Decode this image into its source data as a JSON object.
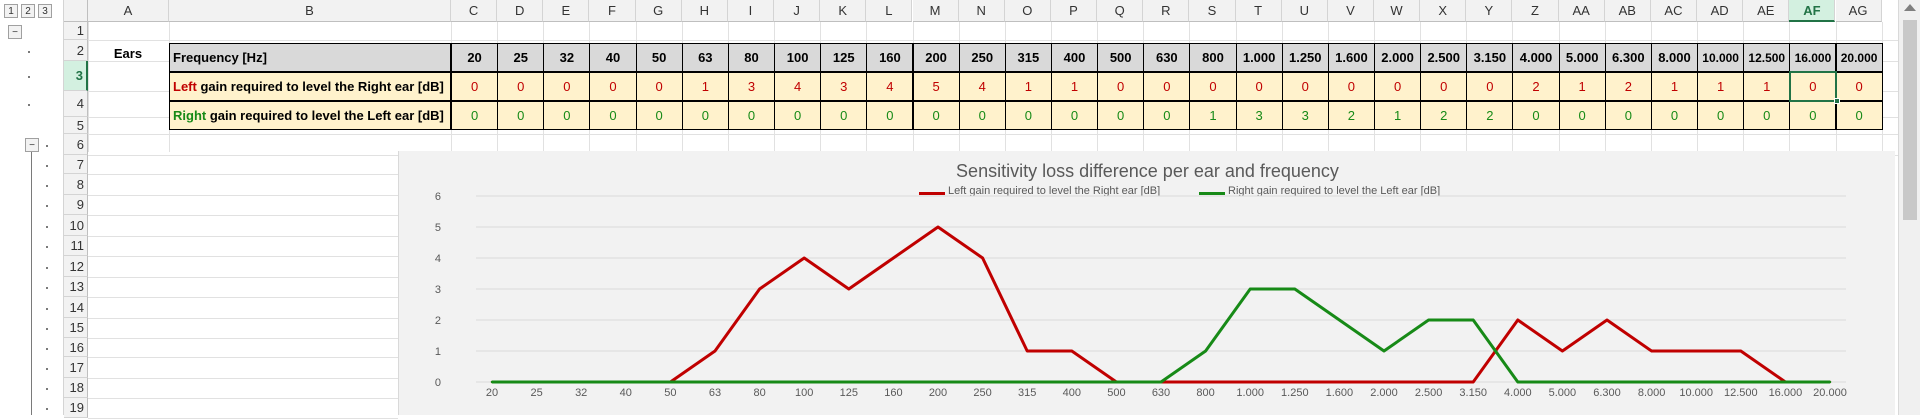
{
  "outline_levels": [
    "1",
    "2",
    "3"
  ],
  "outline_collapse_symbol": "−",
  "columns": [
    "A",
    "B",
    "C",
    "D",
    "E",
    "F",
    "G",
    "H",
    "I",
    "J",
    "K",
    "L",
    "M",
    "N",
    "O",
    "P",
    "Q",
    "R",
    "S",
    "T",
    "U",
    "V",
    "W",
    "X",
    "Y",
    "Z",
    "AA",
    "AB",
    "AC",
    "AD",
    "AE",
    "AF",
    "AG"
  ],
  "selected_column": "AF",
  "rows": [
    "1",
    "2",
    "3",
    "4",
    "5",
    "6",
    "7",
    "8",
    "9",
    "10",
    "11",
    "12",
    "13",
    "14",
    "15",
    "16",
    "17",
    "18",
    "19"
  ],
  "selected_row": "3",
  "ears_label": "Ears",
  "table": {
    "freq_header": "Frequency [Hz]",
    "frequencies": [
      "20",
      "25",
      "32",
      "40",
      "50",
      "63",
      "80",
      "100",
      "125",
      "160",
      "200",
      "250",
      "315",
      "400",
      "500",
      "630",
      "800",
      "1.000",
      "1.250",
      "1.600",
      "2.000",
      "2.500",
      "3.150",
      "4.000",
      "5.000",
      "6.300",
      "8.000",
      "10.000",
      "12.500",
      "16.000",
      "20.000"
    ],
    "left_prefix": "Left",
    "left_suffix": " gain required to level the Right ear [dB]",
    "right_prefix": "Right",
    "right_suffix": " gain required to level the Left ear [dB]",
    "left_values": [
      0,
      0,
      0,
      0,
      0,
      1,
      3,
      4,
      3,
      4,
      5,
      4,
      1,
      1,
      0,
      0,
      0,
      0,
      0,
      0,
      0,
      0,
      0,
      2,
      1,
      2,
      1,
      1,
      1,
      0,
      0
    ],
    "right_values": [
      0,
      0,
      0,
      0,
      0,
      0,
      0,
      0,
      0,
      0,
      0,
      0,
      0,
      0,
      0,
      0,
      1,
      3,
      3,
      2,
      1,
      2,
      2,
      0,
      0,
      0,
      0,
      0,
      0,
      0,
      0
    ]
  },
  "colors": {
    "left": "#c00000",
    "right": "#178a17",
    "header_fill": "#d9d9d9",
    "value_fill": "#fff2cc",
    "chart_bg": "#f2f2f2",
    "grid": "#d9d9d9"
  },
  "chart_data": {
    "type": "line",
    "title": "Sensitivity loss difference per ear and frequency",
    "categories": [
      "20",
      "25",
      "32",
      "40",
      "50",
      "63",
      "80",
      "100",
      "125",
      "160",
      "200",
      "250",
      "315",
      "400",
      "500",
      "630",
      "800",
      "1.000",
      "1.250",
      "1.600",
      "2.000",
      "2.500",
      "3.150",
      "4.000",
      "5.000",
      "6.300",
      "8.000",
      "10.000",
      "12.500",
      "16.000",
      "20.000"
    ],
    "series": [
      {
        "name": "Left gain required to level the Right ear [dB]",
        "color": "#c00000",
        "values": [
          0,
          0,
          0,
          0,
          0,
          1,
          3,
          4,
          3,
          4,
          5,
          4,
          1,
          1,
          0,
          0,
          0,
          0,
          0,
          0,
          0,
          0,
          0,
          2,
          1,
          2,
          1,
          1,
          1,
          0,
          0
        ]
      },
      {
        "name": "Right gain required to level the Left ear [dB]",
        "color": "#178a17",
        "values": [
          0,
          0,
          0,
          0,
          0,
          0,
          0,
          0,
          0,
          0,
          0,
          0,
          0,
          0,
          0,
          0,
          1,
          3,
          3,
          2,
          1,
          2,
          2,
          0,
          0,
          0,
          0,
          0,
          0,
          0,
          0
        ]
      }
    ],
    "ylim": [
      0,
      6
    ],
    "yticks": [
      "0",
      "1",
      "2",
      "3",
      "4",
      "5",
      "6"
    ],
    "grid": true,
    "legend": "top-center"
  }
}
